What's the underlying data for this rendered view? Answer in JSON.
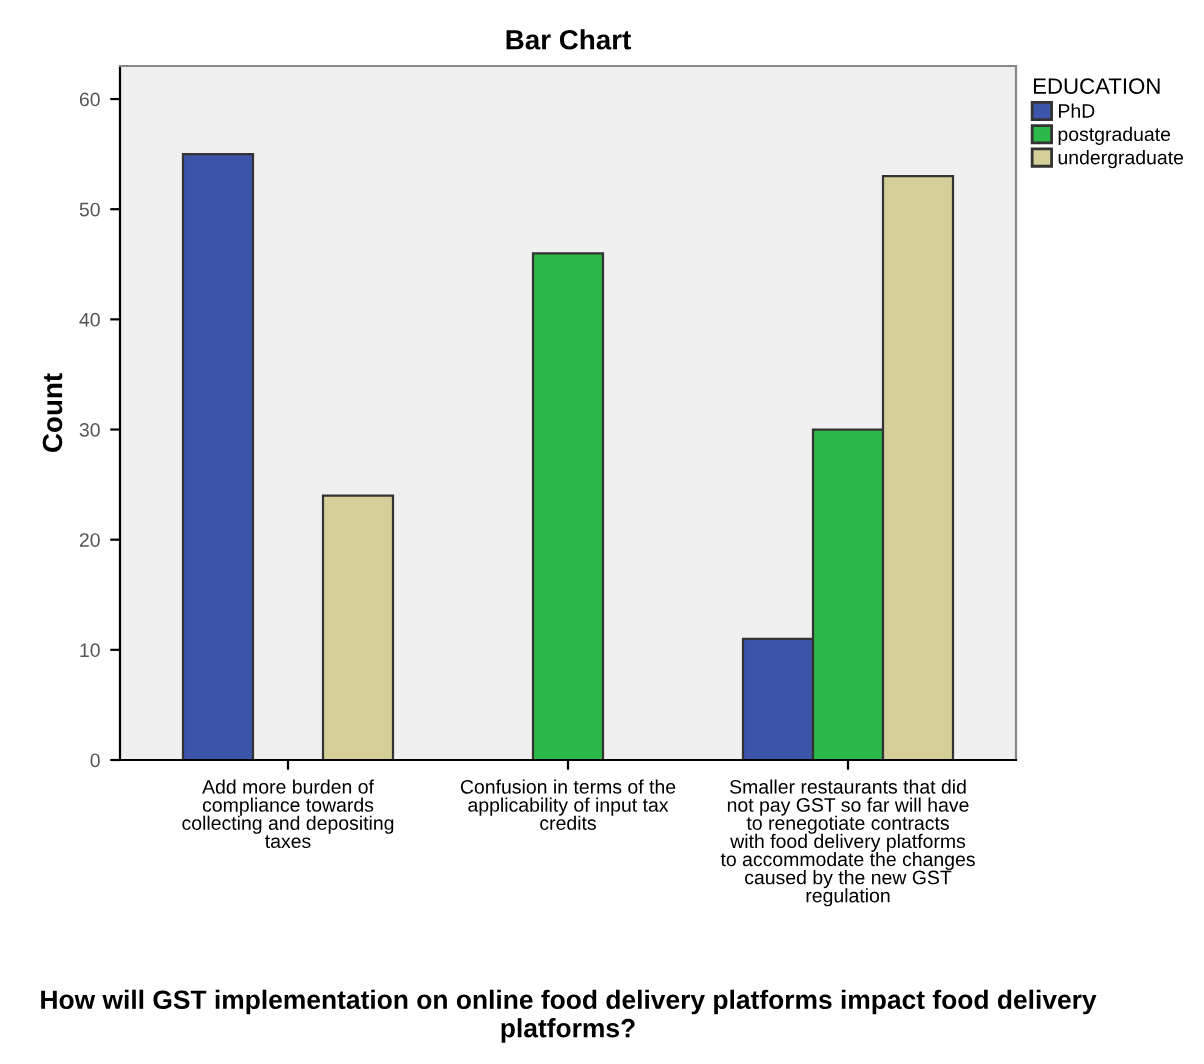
{
  "chart_data": {
    "type": "bar",
    "title": "Bar Chart",
    "xlabel": "How will GST implementation on online food delivery platforms impact food delivery platforms?",
    "ylabel": "Count",
    "legend_title": "EDUCATION",
    "categories": [
      "Add more burden of compliance towards collecting and depositing taxes",
      "Confusion in terms of the applicability of input tax credits",
      "Smaller restaurants that did not pay GST so far will have to renegotiate contracts with food delivery platforms to accommodate the changes caused by the new GST regulation"
    ],
    "series": [
      {
        "name": "PhD",
        "color": "#3d55a8",
        "values": [
          55,
          null,
          11
        ]
      },
      {
        "name": "postgraduate",
        "color": "#2db84a",
        "values": [
          null,
          46,
          30
        ]
      },
      {
        "name": "undergraduate",
        "color": "#d4cf98",
        "values": [
          24,
          null,
          53
        ]
      }
    ],
    "ylim": [
      0,
      63
    ],
    "yticks": [
      0,
      10,
      20,
      30,
      40,
      50,
      60
    ],
    "grid": false,
    "legend": "top right"
  }
}
